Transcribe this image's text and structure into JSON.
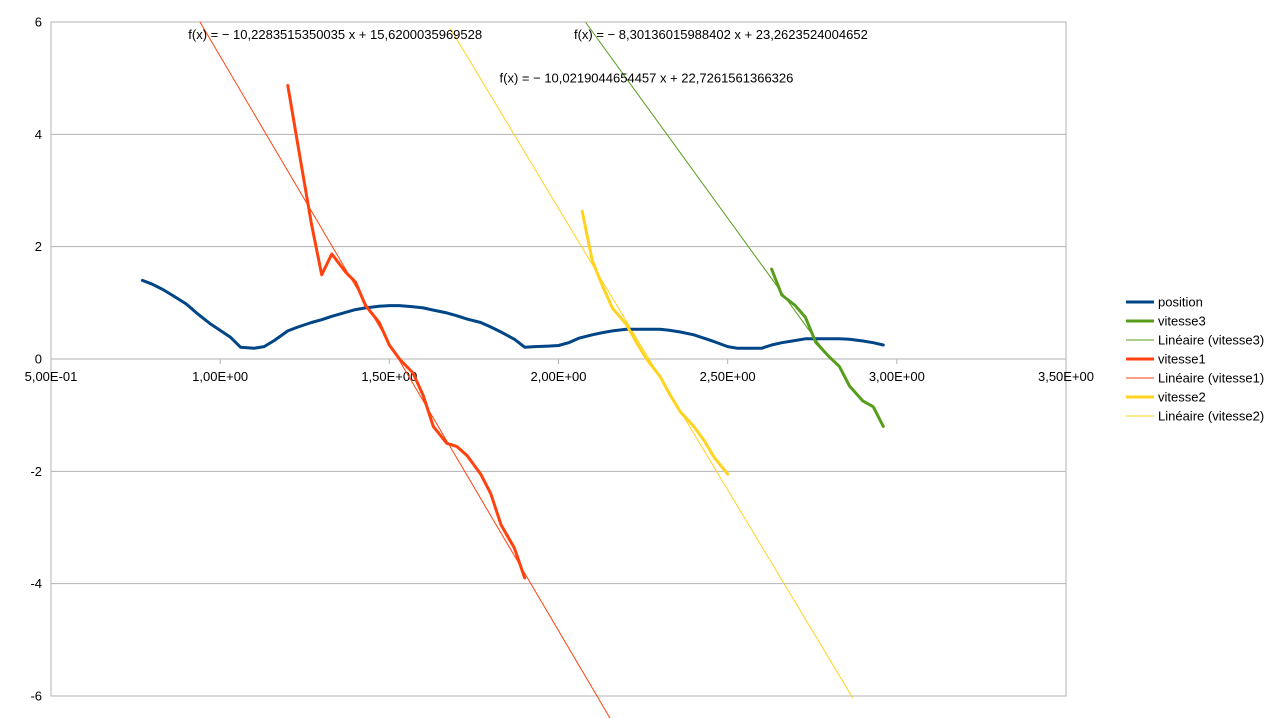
{
  "chart_data": {
    "type": "scatter",
    "title": "",
    "xlabel": "",
    "ylabel": "",
    "xlim": [
      0.5,
      3.5
    ],
    "ylim": [
      -6,
      6
    ],
    "grid": "horizontal",
    "x_ticks": [
      0.5,
      1.0,
      1.5,
      2.0,
      2.5,
      3.0,
      3.5
    ],
    "x_tick_labels": [
      "5,00E-01",
      "1,00E+00",
      "1,50E+00",
      "2,00E+00",
      "2,50E+00",
      "3,00E+00",
      "3,50E+00"
    ],
    "y_ticks": [
      6,
      4,
      2,
      0,
      -2,
      -4,
      -6
    ],
    "y_tick_labels": [
      "6",
      "4",
      "2",
      "0",
      "-2",
      "-4",
      "-6"
    ],
    "legend_position": "right",
    "series": [
      {
        "name": "position",
        "color": "#004586",
        "width": 3,
        "kind": "data",
        "points": [
          [
            0.77,
            1.4
          ],
          [
            0.8,
            1.33
          ],
          [
            0.83,
            1.24
          ],
          [
            0.86,
            1.13
          ],
          [
            0.9,
            0.98
          ],
          [
            0.93,
            0.82
          ],
          [
            0.97,
            0.63
          ],
          [
            1.0,
            0.51
          ],
          [
            1.03,
            0.39
          ],
          [
            1.06,
            0.21
          ],
          [
            1.1,
            0.19
          ],
          [
            1.13,
            0.22
          ],
          [
            1.16,
            0.33
          ],
          [
            1.2,
            0.5
          ],
          [
            1.23,
            0.57
          ],
          [
            1.27,
            0.65
          ],
          [
            1.3,
            0.7
          ],
          [
            1.33,
            0.76
          ],
          [
            1.37,
            0.83
          ],
          [
            1.4,
            0.88
          ],
          [
            1.43,
            0.91
          ],
          [
            1.47,
            0.94
          ],
          [
            1.5,
            0.95
          ],
          [
            1.53,
            0.95
          ],
          [
            1.57,
            0.93
          ],
          [
            1.6,
            0.91
          ],
          [
            1.63,
            0.87
          ],
          [
            1.67,
            0.82
          ],
          [
            1.7,
            0.77
          ],
          [
            1.73,
            0.71
          ],
          [
            1.77,
            0.65
          ],
          [
            1.8,
            0.57
          ],
          [
            1.83,
            0.48
          ],
          [
            1.87,
            0.35
          ],
          [
            1.9,
            0.21
          ],
          [
            1.93,
            0.22
          ],
          [
            1.97,
            0.23
          ],
          [
            2.0,
            0.24
          ],
          [
            2.03,
            0.29
          ],
          [
            2.06,
            0.37
          ],
          [
            2.1,
            0.43
          ],
          [
            2.13,
            0.47
          ],
          [
            2.16,
            0.5
          ],
          [
            2.2,
            0.53
          ],
          [
            2.23,
            0.53
          ],
          [
            2.26,
            0.53
          ],
          [
            2.3,
            0.53
          ],
          [
            2.33,
            0.51
          ],
          [
            2.36,
            0.48
          ],
          [
            2.4,
            0.43
          ],
          [
            2.43,
            0.37
          ],
          [
            2.46,
            0.31
          ],
          [
            2.5,
            0.22
          ],
          [
            2.53,
            0.19
          ],
          [
            2.56,
            0.19
          ],
          [
            2.6,
            0.19
          ],
          [
            2.63,
            0.25
          ],
          [
            2.66,
            0.29
          ],
          [
            2.7,
            0.33
          ],
          [
            2.73,
            0.36
          ],
          [
            2.76,
            0.36
          ],
          [
            2.8,
            0.36
          ],
          [
            2.83,
            0.36
          ],
          [
            2.86,
            0.35
          ],
          [
            2.9,
            0.32
          ],
          [
            2.93,
            0.29
          ],
          [
            2.96,
            0.25
          ]
        ]
      },
      {
        "name": "vitesse3",
        "color": "#579D1C",
        "width": 3,
        "kind": "data",
        "points": [
          [
            2.63,
            1.6
          ],
          [
            2.66,
            1.14
          ],
          [
            2.7,
            0.95
          ],
          [
            2.73,
            0.74
          ],
          [
            2.76,
            0.3
          ],
          [
            2.8,
            0.04
          ],
          [
            2.83,
            -0.13
          ],
          [
            2.86,
            -0.48
          ],
          [
            2.9,
            -0.75
          ],
          [
            2.93,
            -0.85
          ],
          [
            2.96,
            -1.2
          ]
        ]
      },
      {
        "name": "Linéaire (vitesse3)",
        "color": "#579D1C",
        "width": 1,
        "kind": "trend",
        "slope": -8.30136015988402,
        "intercept": 23.2623524004652,
        "x_range": [
          2.08,
          2.8
        ]
      },
      {
        "name": "vitesse1",
        "color": "#FF420E",
        "width": 3,
        "kind": "data",
        "points": [
          [
            1.2,
            4.87
          ],
          [
            1.23,
            3.8
          ],
          [
            1.27,
            2.4
          ],
          [
            1.3,
            1.5
          ],
          [
            1.33,
            1.87
          ],
          [
            1.37,
            1.55
          ],
          [
            1.4,
            1.37
          ],
          [
            1.43,
            0.95
          ],
          [
            1.47,
            0.65
          ],
          [
            1.5,
            0.25
          ],
          [
            1.53,
            0.0
          ],
          [
            1.57,
            -0.25
          ],
          [
            1.6,
            -0.65
          ],
          [
            1.63,
            -1.2
          ],
          [
            1.67,
            -1.5
          ],
          [
            1.7,
            -1.56
          ],
          [
            1.73,
            -1.72
          ],
          [
            1.77,
            -2.05
          ],
          [
            1.8,
            -2.4
          ],
          [
            1.83,
            -2.95
          ],
          [
            1.87,
            -3.37
          ],
          [
            1.9,
            -3.9
          ]
        ]
      },
      {
        "name": "Linéaire (vitesse1)",
        "color": "#FF420E",
        "width": 1,
        "kind": "trend",
        "slope": -10.2283515350035,
        "intercept": 15.6200035969528,
        "x_range": [
          0.94,
          2.2
        ]
      },
      {
        "name": "vitesse2",
        "color": "#FFD320",
        "width": 3,
        "kind": "data",
        "points": [
          [
            2.07,
            2.63
          ],
          [
            2.1,
            1.75
          ],
          [
            2.13,
            1.3
          ],
          [
            2.16,
            0.9
          ],
          [
            2.2,
            0.62
          ],
          [
            2.23,
            0.3
          ],
          [
            2.26,
            0.0
          ],
          [
            2.3,
            -0.31
          ],
          [
            2.33,
            -0.64
          ],
          [
            2.36,
            -0.94
          ],
          [
            2.4,
            -1.2
          ],
          [
            2.43,
            -1.45
          ],
          [
            2.46,
            -1.75
          ],
          [
            2.5,
            -2.05
          ]
        ]
      },
      {
        "name": "Linéaire (vitesse2)",
        "color": "#FFD320",
        "width": 1,
        "kind": "trend",
        "slope": -10.0219044654457,
        "intercept": 22.7261561366326,
        "x_range": [
          1.68,
          2.87
        ]
      }
    ],
    "annotations": [
      {
        "text": "f(x) = − 10,2283515350035 x + 15,6200035969528",
        "x": 1.34,
        "y": 5.78,
        "anchor": "middle"
      },
      {
        "text": "f(x) = − 8,30136015988402 x + 23,2623524004652",
        "x": 2.48,
        "y": 5.78,
        "anchor": "middle"
      },
      {
        "text": "f(x) = − 10,0219044654457 x + 22,7261561366326",
        "x": 2.26,
        "y": 5.0,
        "anchor": "middle"
      }
    ]
  }
}
